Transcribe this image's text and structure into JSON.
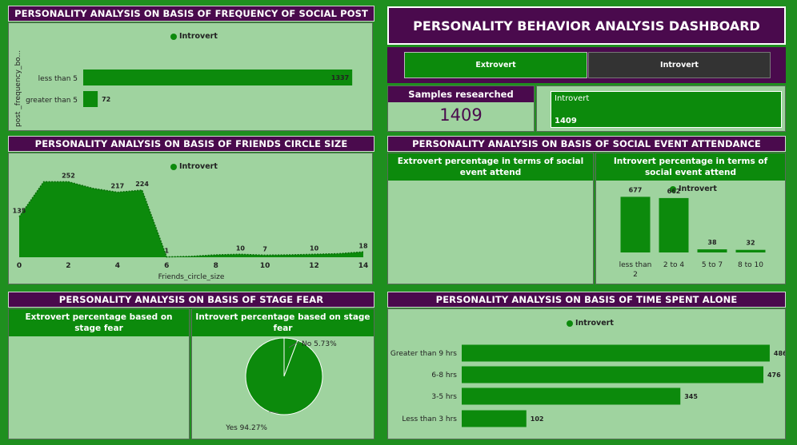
{
  "dashboard_title": "PERSONALITY BEHAVIOR ANALYSIS DASHBOARD",
  "slicer": {
    "extrovert": "Extrovert",
    "introvert": "Introvert"
  },
  "samples": {
    "label": "Samples researched",
    "value": "1409"
  },
  "card": {
    "label": "Introvert",
    "value": "1409"
  },
  "legend_introvert": "Introvert",
  "colors": {
    "green": "#0c8a0c",
    "purple": "#4a0a4d",
    "panel": "#9fd39f"
  },
  "panels": {
    "post": {
      "title": "PERSONALITY ANALYSIS ON BASIS OF FREQUENCY OF SOCIAL POST",
      "ylabel": "post _frequency_bo..."
    },
    "friends": {
      "title": "PERSONALITY ANALYSIS ON BASIS OF FRIENDS CIRCLE SIZE",
      "xlabel": "Friends_circle_size"
    },
    "event": {
      "title": "PERSONALITY ANALYSIS ON BASIS OF SOCIAL EVENT ATTENDANCE",
      "extro_sub": "Extrovert percentage in terms of social event attend",
      "intro_sub": "Introvert percentage in terms of social event attend"
    },
    "stage": {
      "title": "PERSONALITY ANALYSIS ON BASIS OF STAGE FEAR",
      "extro_sub": "Extrovert percentage based on stage fear",
      "intro_sub": "Introvert percentage based on stage fear"
    },
    "alone": {
      "title": "PERSONALITY ANALYSIS ON BASIS OF TIME SPENT ALONE"
    }
  },
  "chart_data": [
    {
      "id": "post",
      "type": "bar",
      "orientation": "horizontal",
      "categories": [
        "less than 5",
        "greater than 5"
      ],
      "series": [
        {
          "name": "Introvert",
          "values": [
            1337,
            72
          ]
        }
      ],
      "ylabel": "post _frequency_bo...",
      "xlim": [
        0,
        1400
      ]
    },
    {
      "id": "friends",
      "type": "area",
      "x": [
        0,
        1,
        2,
        3,
        4,
        5,
        6,
        7,
        8,
        9,
        10,
        11,
        12,
        13,
        14
      ],
      "series": [
        {
          "name": "Introvert",
          "values": [
            135,
            252,
            252,
            230,
            217,
            224,
            1,
            3,
            8,
            10,
            7,
            8,
            10,
            12,
            18
          ]
        }
      ],
      "labeled_points": [
        {
          "x": 0,
          "label": "135"
        },
        {
          "x": 2,
          "label": "252"
        },
        {
          "x": 4,
          "label": "217"
        },
        {
          "x": 5,
          "label": "224"
        },
        {
          "x": 6,
          "label": "1"
        },
        {
          "x": 9,
          "label": "10"
        },
        {
          "x": 10,
          "label": "7"
        },
        {
          "x": 12,
          "label": "10"
        },
        {
          "x": 14,
          "label": "18"
        }
      ],
      "xticks": [
        "0",
        "2",
        "4",
        "6",
        "8",
        "10",
        "12",
        "14"
      ],
      "xlabel": "Friends_circle_size",
      "xlim": [
        0,
        14
      ],
      "ylim": [
        0,
        280
      ]
    },
    {
      "id": "event_introvert",
      "type": "bar",
      "categories": [
        "less than 2",
        "2 to 4",
        "5 to 7",
        "8 to 10"
      ],
      "series": [
        {
          "name": "Introvert",
          "values": [
            677,
            662,
            38,
            32
          ]
        }
      ],
      "ylim": [
        0,
        700
      ]
    },
    {
      "id": "stage_introvert",
      "type": "pie",
      "slices": [
        {
          "label": "No",
          "pct_label": "5.73%",
          "value": 5.73
        },
        {
          "label": "Yes",
          "pct_label": "94.27%",
          "value": 94.27
        }
      ]
    },
    {
      "id": "alone",
      "type": "bar",
      "orientation": "horizontal",
      "categories": [
        "Greater than 9 hrs",
        "6-8 hrs",
        "3-5 hrs",
        "Less than 3 hrs"
      ],
      "series": [
        {
          "name": "Introvert",
          "values": [
            486,
            476,
            345,
            102
          ]
        }
      ],
      "xlim": [
        0,
        500
      ]
    }
  ]
}
